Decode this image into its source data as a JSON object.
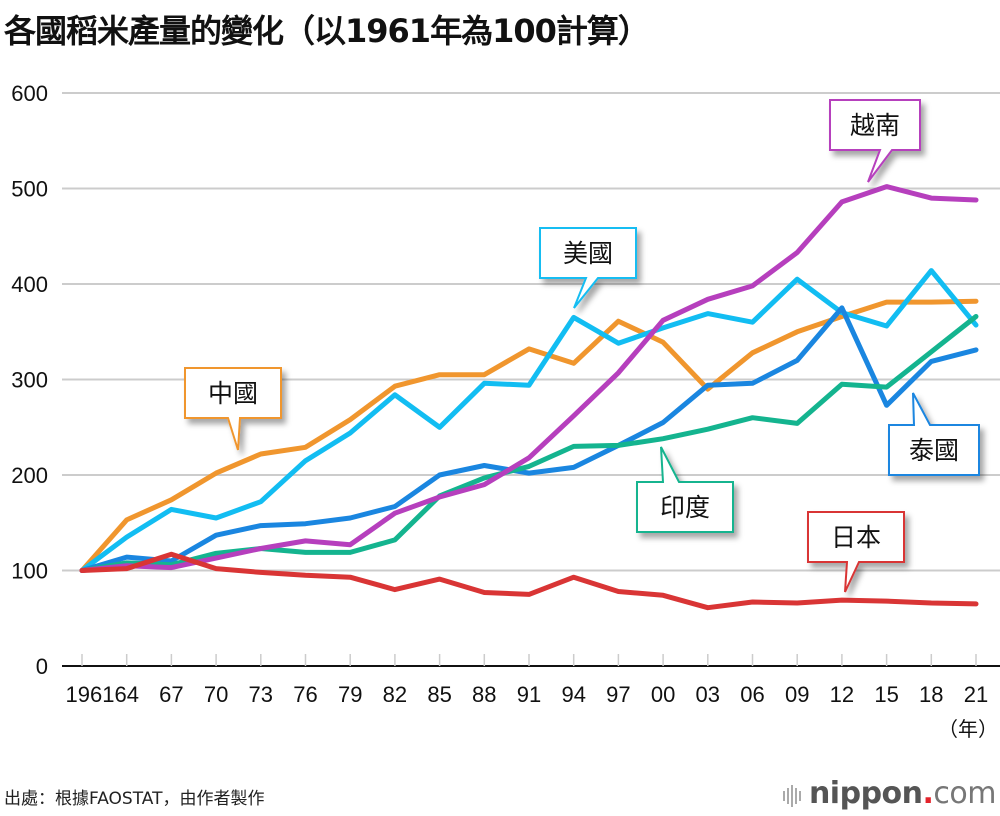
{
  "title": "各國稻米產量的變化（以1961年為100計算）",
  "source": "出處：根據FAOSTAT，由作者製作",
  "logo": {
    "brand": "nippon",
    "dot": ".",
    "domain": "com"
  },
  "chart_data": {
    "type": "line",
    "title": "各國稻米產量的變化（以1961年為100計算）",
    "xlabel": "（年）",
    "ylabel": "",
    "x": [
      1961,
      1964,
      1967,
      1970,
      1973,
      1976,
      1979,
      1982,
      1985,
      1988,
      1991,
      1994,
      1997,
      2000,
      2003,
      2006,
      2009,
      2012,
      2015,
      2018,
      2021
    ],
    "x_tick_labels": [
      "1961",
      "64",
      "67",
      "70",
      "73",
      "76",
      "79",
      "82",
      "85",
      "88",
      "91",
      "94",
      "97",
      "00",
      "03",
      "06",
      "09",
      "12",
      "15",
      "18",
      "21"
    ],
    "y_ticks": [
      0,
      100,
      200,
      300,
      400,
      500,
      600
    ],
    "ylim": [
      0,
      600
    ],
    "grid": true,
    "legend": "callout labels on lines",
    "series": [
      {
        "name": "中國",
        "color": "#f0962e",
        "values": [
          100,
          153,
          174,
          202,
          222,
          229,
          258,
          293,
          305,
          305,
          332,
          317,
          361,
          339,
          290,
          328,
          350,
          366,
          381,
          381,
          382
        ]
      },
      {
        "name": "美國",
        "color": "#12bdf2",
        "values": [
          100,
          135,
          164,
          155,
          172,
          215,
          244,
          284,
          250,
          296,
          294,
          365,
          338,
          354,
          369,
          360,
          405,
          370,
          356,
          414,
          357
        ]
      },
      {
        "name": "越南",
        "color": "#b63fbd",
        "values": [
          100,
          105,
          103,
          113,
          123,
          131,
          127,
          160,
          177,
          190,
          218,
          262,
          307,
          362,
          384,
          398,
          433,
          486,
          502,
          490,
          488
        ]
      },
      {
        "name": "泰國",
        "color": "#1a86e0",
        "values": [
          100,
          114,
          110,
          137,
          147,
          149,
          155,
          167,
          200,
          210,
          202,
          208,
          231,
          255,
          294,
          296,
          320,
          375,
          273,
          319,
          331
        ]
      },
      {
        "name": "印度",
        "color": "#14b48f",
        "values": [
          100,
          108,
          106,
          118,
          123,
          119,
          119,
          132,
          178,
          197,
          209,
          230,
          231,
          238,
          248,
          260,
          254,
          295,
          292,
          329,
          366
        ]
      },
      {
        "name": "日本",
        "color": "#d93535",
        "values": [
          100,
          102,
          117,
          102,
          98,
          95,
          93,
          80,
          91,
          77,
          75,
          93,
          78,
          74,
          61,
          67,
          66,
          69,
          68,
          66,
          65
        ]
      }
    ]
  }
}
